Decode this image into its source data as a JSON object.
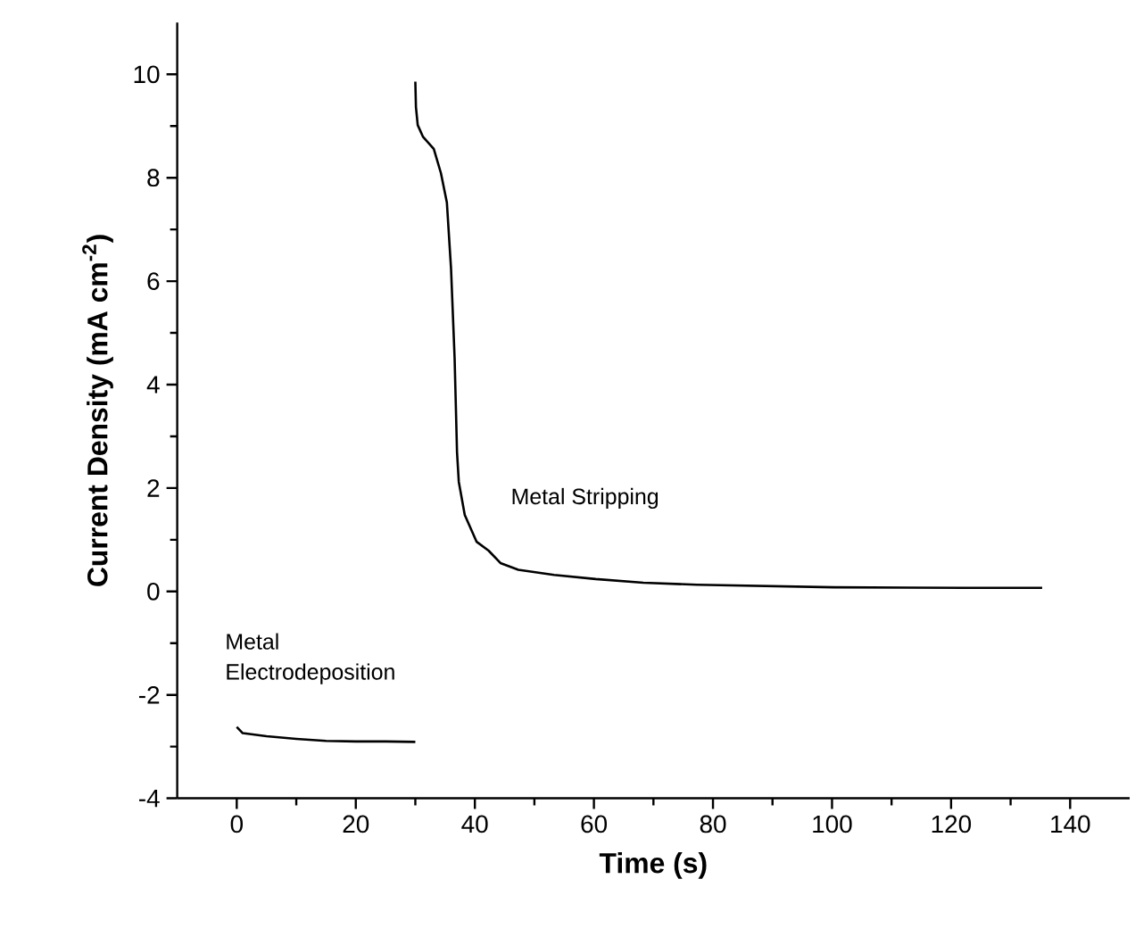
{
  "chart_data": {
    "type": "line",
    "xlabel": "Time (s)",
    "ylabel": "Current Density (mA cm$^{-2}$)",
    "xlim": [
      -10,
      150
    ],
    "ylim": [
      -4,
      11
    ],
    "xticks": [
      0,
      20,
      40,
      60,
      80,
      100,
      120,
      140
    ],
    "yticks": [
      -4,
      -2,
      0,
      2,
      4,
      6,
      8,
      10
    ],
    "grid": false,
    "marker": "none",
    "line_style": "solid",
    "annotations": [
      "Metal Stripping",
      "Metal Electrodeposition"
    ],
    "series": [
      {
        "color": "#000000",
        "x": [
          0,
          1,
          5,
          10,
          15,
          20,
          25,
          30
        ],
        "values": [
          -2.62,
          -2.74,
          -2.8,
          -2.85,
          -2.89,
          -2.9,
          -2.9,
          -2.91
        ]
      },
      {
        "color": "#000000",
        "x": [
          30,
          30.1,
          30.4,
          31.3,
          33.1,
          34.3,
          35.3,
          36.0,
          36.6,
          37.0,
          37.3,
          38.3,
          40.3,
          42.3,
          44.3,
          47.3,
          53.3,
          60.3,
          68.3,
          77.3,
          100.3,
          122.3,
          135.3
        ],
        "values": [
          9.86,
          9.37,
          9.02,
          8.79,
          8.56,
          8.09,
          7.52,
          6.24,
          4.51,
          2.7,
          2.12,
          1.48,
          0.96,
          0.79,
          0.55,
          0.42,
          0.32,
          0.24,
          0.17,
          0.13,
          0.08,
          0.07,
          0.07
        ]
      }
    ]
  }
}
